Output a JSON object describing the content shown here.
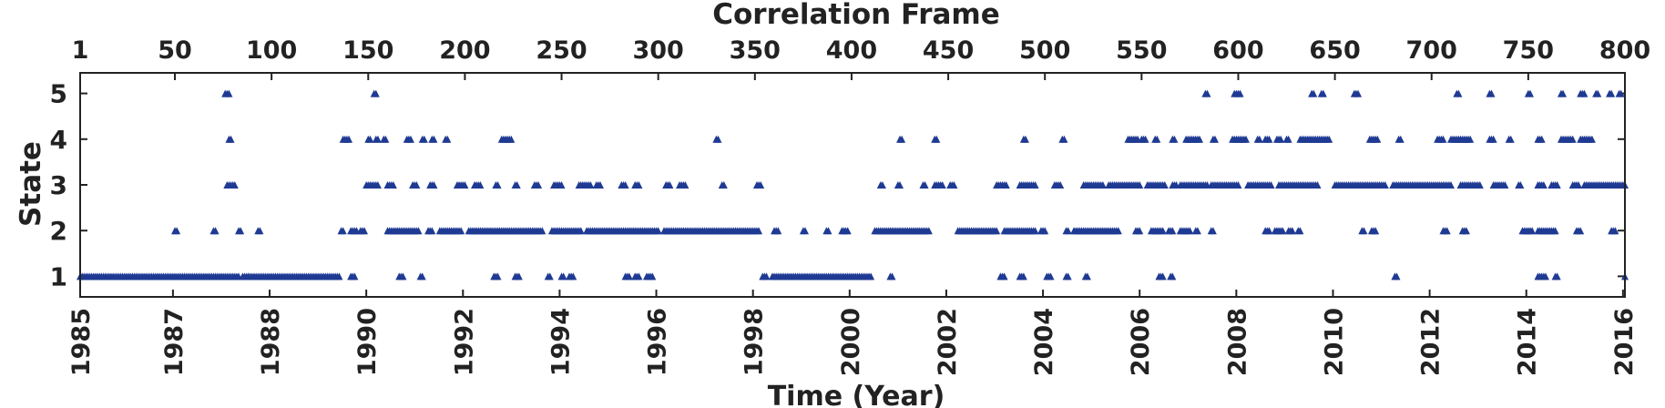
{
  "chart_data": {
    "type": "scatter",
    "title": "Correlation Frame",
    "xlabel": "Time (Year)",
    "ylabel": "State",
    "xlim": [
      1,
      800
    ],
    "ylim": [
      0.55,
      5.45
    ],
    "top_axis": {
      "label": "Correlation Frame",
      "ticks": [
        1,
        50,
        100,
        150,
        200,
        250,
        300,
        350,
        400,
        450,
        500,
        550,
        600,
        650,
        700,
        750,
        800
      ],
      "tick_labels": [
        "1",
        "50",
        "100",
        "150",
        "200",
        "250",
        "300",
        "350",
        "400",
        "450",
        "500",
        "550",
        "600",
        "650",
        "700",
        "750",
        "800"
      ]
    },
    "bottom_axis": {
      "label": "Time (Year)",
      "ticks": [
        1,
        49,
        99,
        149,
        199,
        249,
        299,
        349,
        399,
        449,
        499,
        549,
        599,
        649,
        699,
        749,
        799
      ],
      "tick_labels": [
        "1985",
        "1987",
        "1988",
        "1990",
        "1992",
        "1994",
        "1996",
        "1998",
        "2000",
        "2002",
        "2004",
        "2006",
        "2008",
        "2010",
        "2012",
        "2014",
        "2016"
      ]
    },
    "y_ticks": [
      1,
      2,
      3,
      4,
      5
    ],
    "y_tick_labels": [
      "1",
      "2",
      "3",
      "4",
      "5"
    ],
    "grid": false,
    "marker": "triangle",
    "color": "#1f3a93",
    "x_unit": "correlation frame",
    "series": [
      {
        "state": 1,
        "x_ranges": [
          [
            1,
            70
          ],
          [
            71,
            75
          ],
          [
            76,
            83
          ],
          [
            85,
            88
          ],
          [
            88,
            91
          ],
          [
            92,
            135
          ],
          [
            141,
            143
          ],
          [
            166,
            168
          ],
          [
            177,
            178
          ],
          [
            215,
            217
          ],
          [
            226,
            228
          ],
          [
            243,
            244
          ],
          [
            250,
            251
          ],
          [
            254,
            256
          ],
          [
            283,
            285
          ],
          [
            288,
            290
          ],
          [
            294,
            297
          ],
          [
            354,
            356
          ],
          [
            359,
            410
          ],
          [
            420,
            421
          ],
          [
            477,
            479
          ],
          [
            487,
            489
          ],
          [
            501,
            503
          ],
          [
            511,
            512
          ],
          [
            521,
            522
          ],
          [
            559,
            561
          ],
          [
            565,
            566
          ],
          [
            681,
            682
          ],
          [
            755,
            759
          ],
          [
            764,
            765
          ],
          [
            800,
            800
          ]
        ]
      },
      {
        "state": 2,
        "x_ranges": [
          [
            50,
            51
          ],
          [
            70,
            71
          ],
          [
            83,
            84
          ],
          [
            93,
            94
          ],
          [
            136,
            137
          ],
          [
            141,
            144
          ],
          [
            146,
            148
          ],
          [
            160,
            176
          ],
          [
            181,
            183
          ],
          [
            187,
            198
          ],
          [
            202,
            240
          ],
          [
            245,
            260
          ],
          [
            263,
            300
          ],
          [
            303,
            352
          ],
          [
            360,
            362
          ],
          [
            375,
            376
          ],
          [
            387,
            388
          ],
          [
            395,
            398
          ],
          [
            412,
            440
          ],
          [
            455,
            475
          ],
          [
            479,
            489
          ],
          [
            490,
            495
          ],
          [
            498,
            500
          ],
          [
            511,
            512
          ],
          [
            515,
            538
          ],
          [
            547,
            549
          ],
          [
            555,
            561
          ],
          [
            564,
            566
          ],
          [
            570,
            575
          ],
          [
            578,
            579
          ],
          [
            586,
            587
          ],
          [
            614,
            616
          ],
          [
            619,
            623
          ],
          [
            626,
            628
          ],
          [
            631,
            632
          ],
          [
            664,
            665
          ],
          [
            669,
            671
          ],
          [
            706,
            708
          ],
          [
            716,
            718
          ],
          [
            747,
            752
          ],
          [
            755,
            764
          ],
          [
            775,
            777
          ],
          [
            793,
            795
          ]
        ]
      },
      {
        "state": 3,
        "x_ranges": [
          [
            77,
            81
          ],
          [
            149,
            155
          ],
          [
            160,
            163
          ],
          [
            173,
            175
          ],
          [
            182,
            184
          ],
          [
            196,
            200
          ],
          [
            205,
            208
          ],
          [
            216,
            217
          ],
          [
            226,
            227
          ],
          [
            236,
            238
          ],
          [
            246,
            250
          ],
          [
            259,
            265
          ],
          [
            268,
            270
          ],
          [
            281,
            283
          ],
          [
            288,
            290
          ],
          [
            304,
            306
          ],
          [
            311,
            314
          ],
          [
            333,
            334
          ],
          [
            351,
            353
          ],
          [
            415,
            416
          ],
          [
            424,
            425
          ],
          [
            437,
            438
          ],
          [
            443,
            447
          ],
          [
            451,
            453
          ],
          [
            475,
            480
          ],
          [
            487,
            495
          ],
          [
            505,
            508
          ],
          [
            520,
            530
          ],
          [
            533,
            549
          ],
          [
            553,
            562
          ],
          [
            566,
            568
          ],
          [
            570,
            584
          ],
          [
            586,
            600
          ],
          [
            605,
            617
          ],
          [
            621,
            641
          ],
          [
            650,
            676
          ],
          [
            680,
            710
          ],
          [
            715,
            725
          ],
          [
            732,
            738
          ],
          [
            745,
            746
          ],
          [
            755,
            758
          ],
          [
            762,
            765
          ],
          [
            773,
            776
          ],
          [
            779,
            800
          ]
        ]
      },
      {
        "state": 4,
        "x_ranges": [
          [
            78,
            79
          ],
          [
            137,
            140
          ],
          [
            150,
            151
          ],
          [
            154,
            155
          ],
          [
            158,
            159
          ],
          [
            170,
            172
          ],
          [
            178,
            179
          ],
          [
            183,
            184
          ],
          [
            190,
            191
          ],
          [
            219,
            224
          ],
          [
            330,
            331
          ],
          [
            425,
            426
          ],
          [
            443,
            444
          ],
          [
            489,
            490
          ],
          [
            509,
            510
          ],
          [
            543,
            548
          ],
          [
            550,
            552
          ],
          [
            557,
            558
          ],
          [
            566,
            567
          ],
          [
            573,
            580
          ],
          [
            587,
            588
          ],
          [
            597,
            604
          ],
          [
            610,
            611
          ],
          [
            614,
            616
          ],
          [
            620,
            622
          ],
          [
            625,
            626
          ],
          [
            632,
            647
          ],
          [
            668,
            672
          ],
          [
            683,
            684
          ],
          [
            703,
            706
          ],
          [
            710,
            720
          ],
          [
            730,
            732
          ],
          [
            740,
            741
          ],
          [
            755,
            757
          ],
          [
            767,
            773
          ],
          [
            777,
            783
          ]
        ]
      },
      {
        "state": 5,
        "x_ranges": [
          [
            76,
            78
          ],
          [
            153,
            154
          ],
          [
            583,
            584
          ],
          [
            598,
            601
          ],
          [
            638,
            639
          ],
          [
            643,
            644
          ],
          [
            660,
            662
          ],
          [
            713,
            714
          ],
          [
            730,
            731
          ],
          [
            750,
            751
          ],
          [
            767,
            768
          ],
          [
            777,
            779
          ],
          [
            785,
            786
          ],
          [
            792,
            793
          ],
          [
            797,
            798
          ]
        ]
      }
    ]
  }
}
